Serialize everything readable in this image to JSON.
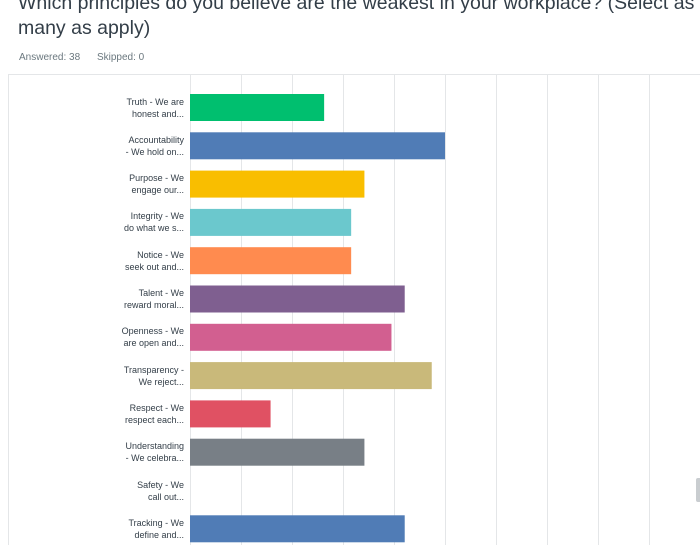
{
  "question": {
    "title": "Which principles do you believe are the weakest in your workplace? (Select as many as apply)",
    "answered_label": "Answered: 38",
    "skipped_label": "Skipped: 0"
  },
  "chart_data": {
    "type": "bar",
    "orientation": "horizontal",
    "categories": [
      "Truth - We are honest and...",
      "Accountability - We hold on...",
      "Purpose - We engage our...",
      "Integrity - We do what we s...",
      "Notice - We seek out and...",
      "Talent - We reward moral...",
      "Openness - We are open and...",
      "Transparency - We reject...",
      "Respect - We respect each...",
      "Understanding - We celebra...",
      "Safety - We call out...",
      "Tracking - We define and..."
    ],
    "label_lines": [
      [
        "Truth - We are",
        "honest and..."
      ],
      [
        "Accountability",
        "- We hold on..."
      ],
      [
        "Purpose - We",
        "engage our..."
      ],
      [
        "Integrity - We",
        "do what we s..."
      ],
      [
        "Notice - We",
        "seek out and..."
      ],
      [
        "Talent - We",
        "reward moral..."
      ],
      [
        "Openness - We",
        "are open and..."
      ],
      [
        "Transparency -",
        "We reject..."
      ],
      [
        "Respect - We",
        "respect each..."
      ],
      [
        "Understanding",
        "- We celebra..."
      ],
      [
        "Safety - We",
        "call out..."
      ],
      [
        "Tracking - We",
        "define and..."
      ]
    ],
    "values": [
      26.3,
      50.0,
      34.2,
      31.6,
      31.6,
      42.1,
      39.5,
      47.4,
      15.8,
      34.2,
      0,
      42.1
    ],
    "colors": [
      "#00bf6f",
      "#507cb6",
      "#f9be00",
      "#6bc8cd",
      "#ff8b4f",
      "#7f5f90",
      "#d25f90",
      "#c9b97a",
      "#e05163",
      "#787f86",
      "#507cb6",
      "#507cb6"
    ],
    "xlim": [
      0,
      100
    ],
    "grid": true,
    "gridline_color": "#e4e6e8"
  }
}
